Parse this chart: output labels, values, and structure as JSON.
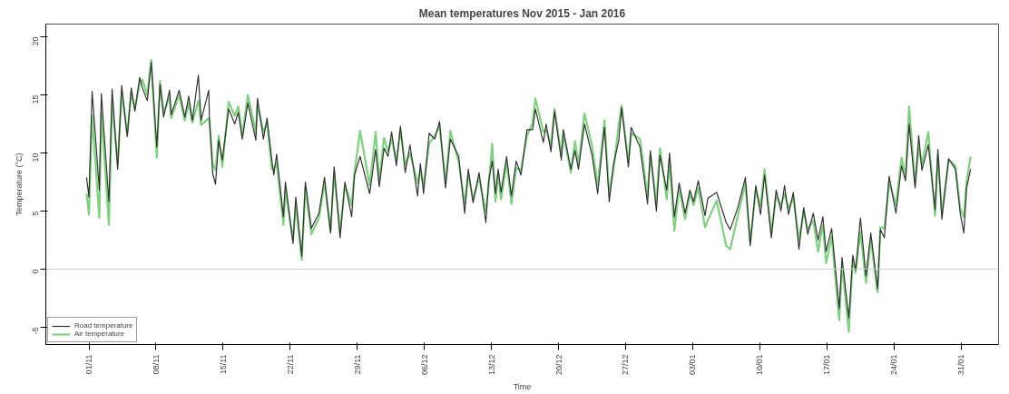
{
  "chart_data": {
    "type": "line",
    "title": "Mean temperatures Nov 2015 - Jan 2016",
    "xlabel": "Time",
    "ylabel": "Temperature (°C)",
    "x": [
      "2015-10-31T18:00",
      "2015-11-01T00:00",
      "2015-11-01T08:00",
      "2015-11-02T02:00",
      "2015-11-02T07:00",
      "2015-11-03T02:00",
      "2015-11-03T10:00",
      "2015-11-04T00:00",
      "2015-11-04T10:00",
      "2015-11-05T00:00",
      "2015-11-05T10:00",
      "2015-11-05T19:00",
      "2015-11-06T07:00",
      "2015-11-06T14:00",
      "2015-11-07T02:00",
      "2015-11-07T12:00",
      "2015-11-08T02:00",
      "2015-11-08T10:00",
      "2015-11-08T19:00",
      "2015-11-09T10:00",
      "2015-11-09T14:00",
      "2015-11-10T10:00",
      "2015-11-11T00:00",
      "2015-11-11T10:00",
      "2015-11-11T19:00",
      "2015-11-12T10:00",
      "2015-11-12T17:00",
      "2015-11-13T12:00",
      "2015-11-13T14:00",
      "2015-11-13T22:00",
      "2015-11-14T05:00",
      "2015-11-14T13:00",
      "2015-11-14T22:00",
      "2015-11-15T14:00",
      "2015-11-16T05:00",
      "2015-11-16T14:00",
      "2015-11-17T00:00",
      "2015-11-17T14:00",
      "2015-11-18T10:00",
      "2015-11-18T14:00",
      "2015-11-19T05:00",
      "2015-11-19T14:00",
      "2015-11-20T02:00",
      "2015-11-20T07:00",
      "2015-11-20T14:00",
      "2015-11-21T07:00",
      "2015-11-21T12:00",
      "2015-11-22T07:00",
      "2015-11-22T14:00",
      "2015-11-23T05:00",
      "2015-11-23T14:00",
      "2015-11-24T05:00",
      "2015-11-25T00:00",
      "2015-11-25T14:00",
      "2015-11-26T05:00",
      "2015-11-26T14:00",
      "2015-11-27T05:00",
      "2015-11-27T17:00",
      "2015-11-28T10:00",
      "2015-11-28T17:00",
      "2015-11-29T07:00",
      "2015-11-30T07:00",
      "2015-11-30T22:00",
      "2015-12-01T07:00",
      "2015-12-01T19:00",
      "2015-12-02T05:00",
      "2015-12-02T14:00",
      "2015-12-03T02:00",
      "2015-12-03T12:00",
      "2015-12-04T00:00",
      "2015-12-04T12:00",
      "2015-12-05T07:00",
      "2015-12-05T14:00",
      "2015-12-05T22:00",
      "2015-12-06T12:00",
      "2015-12-07T02:00",
      "2015-12-07T14:00",
      "2015-12-08T05:00",
      "2015-12-08T17:00",
      "2015-12-09T14:00",
      "2015-12-10T05:00",
      "2015-12-10T14:00",
      "2015-12-11T02:00",
      "2015-12-11T17:00",
      "2015-12-12T10:00",
      "2015-12-12T17:00",
      "2015-12-13T02:00",
      "2015-12-13T10:00",
      "2015-12-13T17:00",
      "2015-12-14T00:00",
      "2015-12-14T14:00",
      "2015-12-15T02:00",
      "2015-12-15T14:00",
      "2015-12-16T02:00",
      "2015-12-16T17:00",
      "2015-12-17T07:00",
      "2015-12-17T14:00",
      "2015-12-18T10:00",
      "2015-12-18T17:00",
      "2015-12-19T05:00",
      "2015-12-19T14:00",
      "2015-12-20T07:00",
      "2015-12-20T12:00",
      "2015-12-21T07:00",
      "2015-12-21T17:00",
      "2015-12-22T02:00",
      "2015-12-22T17:00",
      "2015-12-23T12:00",
      "2015-12-24T02:00",
      "2015-12-24T19:00",
      "2015-12-25T07:00",
      "2015-12-25T17:00",
      "2015-12-26T07:00",
      "2015-12-26T14:00",
      "2015-12-27T07:00",
      "2015-12-27T14:00",
      "2015-12-28T12:00",
      "2015-12-29T07:00",
      "2015-12-29T14:00",
      "2015-12-30T05:00",
      "2015-12-30T14:00",
      "2015-12-31T07:00",
      "2015-12-31T14:00",
      "2016-01-01T02:00",
      "2016-01-01T14:00",
      "2016-01-02T05:00",
      "2016-01-02T17:00",
      "2016-01-03T02:00",
      "2016-01-03T14:00",
      "2016-01-04T07:00",
      "2016-01-04T14:00",
      "2016-01-05T12:00",
      "2016-01-06T12:00",
      "2016-01-06T22:00",
      "2016-01-07T17:00",
      "2016-01-08T12:00",
      "2016-01-09T00:00",
      "2016-01-09T14:00",
      "2016-01-10T02:00",
      "2016-01-10T12:00",
      "2016-01-11T05:00",
      "2016-01-11T17:00",
      "2016-01-12T05:00",
      "2016-01-12T14:00",
      "2016-01-13T00:00",
      "2016-01-13T12:00",
      "2016-01-14T02:00",
      "2016-01-14T14:00",
      "2016-01-15T00:00",
      "2016-01-15T14:00",
      "2016-01-16T02:00",
      "2016-01-16T14:00",
      "2016-01-16T22:00",
      "2016-01-17T12:00",
      "2016-01-18T07:00",
      "2016-01-18T14:00",
      "2016-01-19T07:00",
      "2016-01-19T17:00",
      "2016-01-20T00:00",
      "2016-01-20T12:00",
      "2016-01-21T02:00",
      "2016-01-21T14:00",
      "2016-01-22T07:00",
      "2016-01-22T14:00",
      "2016-01-23T00:00",
      "2016-01-23T12:00",
      "2016-01-24T05:00",
      "2016-01-24T19:00",
      "2016-01-25T05:00",
      "2016-01-25T14:00",
      "2016-01-26T05:00",
      "2016-01-26T14:00",
      "2016-01-26T22:00",
      "2016-01-27T14:00",
      "2016-01-28T07:00",
      "2016-01-28T14:00",
      "2016-01-29T00:00",
      "2016-01-29T17:00",
      "2016-01-30T10:00",
      "2016-01-30T22:00",
      "2016-01-31T07:00",
      "2016-01-31T14:00",
      "2016-02-01T00:00"
    ],
    "series": [
      {
        "name": "Road temperature",
        "color": "#333333",
        "values": [
          7.9,
          6.2,
          15.3,
          6.8,
          15.1,
          5.8,
          15.5,
          8.6,
          15.8,
          11.4,
          15.6,
          13.6,
          16.5,
          15.6,
          14.5,
          17.8,
          10.5,
          15.9,
          13.1,
          15.4,
          13.3,
          15.4,
          13.1,
          14.9,
          12.8,
          16.7,
          12.8,
          15.4,
          12.8,
          8.2,
          7.3,
          11.1,
          9.4,
          13.8,
          12.5,
          13.5,
          11.2,
          14.3,
          11.1,
          14.7,
          11.2,
          13.0,
          9.4,
          8.1,
          9.9,
          4.5,
          7.5,
          2.2,
          6.2,
          1.1,
          7.5,
          3.5,
          4.8,
          7.9,
          3.1,
          8.8,
          2.7,
          7.5,
          4.5,
          8.1,
          9.7,
          6.5,
          10.3,
          7.1,
          10.4,
          9.7,
          11.8,
          8.9,
          12.3,
          8.3,
          10.7,
          6.3,
          9.1,
          6.5,
          11.7,
          11.2,
          12.7,
          7.0,
          11.2,
          9.7,
          4.8,
          8.6,
          5.7,
          8.3,
          4.0,
          7.6,
          9.3,
          6.5,
          8.6,
          6.6,
          9.7,
          6.3,
          9.3,
          8.1,
          12.0,
          12.0,
          13.8,
          10.9,
          12.5,
          10.1,
          13.6,
          9.4,
          12.0,
          8.6,
          10.2,
          8.6,
          12.5,
          9.8,
          6.5,
          12.2,
          5.8,
          8.9,
          11.1,
          13.9,
          8.8,
          12.2,
          10.5,
          5.6,
          10.2,
          5.0,
          9.8,
          6.8,
          10.0,
          4.5,
          7.4,
          4.8,
          6.8,
          5.8,
          7.6,
          4.6,
          6.1,
          6.6,
          4.0,
          3.4,
          5.3,
          7.9,
          2.0,
          7.2,
          4.7,
          8.1,
          2.7,
          6.8,
          5.0,
          7.2,
          4.7,
          6.6,
          1.7,
          5.3,
          3.0,
          4.8,
          2.5,
          4.5,
          1.5,
          3.5,
          -3.4,
          1.0,
          -4.2,
          1.2,
          -0.1,
          4.4,
          -0.6,
          3.1,
          -1.7,
          3.4,
          2.7,
          8.0,
          4.8,
          8.9,
          7.6,
          12.5,
          7.0,
          11.5,
          8.5,
          10.7,
          5.1,
          10.3,
          4.3,
          9.5,
          8.6,
          4.8,
          3.1,
          7.0,
          8.6
        ]
      },
      {
        "name": "Air temperature",
        "color": "#7fd17f",
        "values": [
          6.5,
          4.7,
          13.2,
          4.4,
          13.5,
          3.8,
          14.3,
          9.0,
          15.2,
          11.6,
          15.2,
          13.8,
          16.0,
          16.3,
          15.0,
          18.0,
          9.6,
          16.2,
          13.5,
          14.8,
          13.0,
          15.0,
          12.8,
          14.3,
          12.6,
          14.5,
          12.4,
          13.0,
          12.6,
          9.0,
          8.5,
          11.5,
          8.8,
          14.4,
          13.2,
          14.0,
          11.5,
          15.0,
          11.8,
          14.2,
          11.8,
          12.6,
          8.6,
          8.6,
          9.2,
          3.8,
          6.8,
          2.5,
          5.5,
          0.8,
          7.0,
          3.0,
          4.4,
          7.4,
          3.3,
          8.3,
          3.2,
          7.2,
          5.5,
          8.3,
          11.9,
          7.2,
          11.8,
          7.6,
          11.3,
          10.1,
          11.2,
          9.3,
          12.0,
          9.0,
          10.0,
          7.4,
          8.5,
          7.2,
          10.8,
          11.5,
          12.3,
          7.5,
          11.9,
          9.2,
          5.6,
          8.2,
          6.0,
          7.9,
          4.9,
          7.2,
          10.8,
          5.8,
          8.2,
          6.0,
          9.2,
          5.6,
          8.7,
          8.5,
          11.5,
          12.6,
          14.7,
          11.8,
          12.0,
          10.6,
          13.8,
          9.8,
          11.6,
          8.3,
          11.0,
          9.0,
          13.4,
          10.6,
          7.2,
          12.8,
          6.5,
          8.4,
          12.5,
          14.1,
          9.2,
          11.7,
          11.2,
          6.3,
          9.8,
          5.7,
          10.4,
          6.0,
          9.4,
          3.3,
          7.0,
          4.3,
          6.5,
          5.5,
          7.0,
          3.6,
          4.2,
          5.9,
          2.0,
          1.7,
          4.6,
          7.4,
          2.3,
          6.8,
          5.4,
          8.6,
          3.1,
          6.3,
          5.5,
          6.5,
          5.2,
          6.2,
          2.5,
          5.0,
          3.4,
          4.2,
          1.5,
          3.8,
          0.5,
          2.8,
          -4.4,
          0.3,
          -5.4,
          0.8,
          -0.3,
          3.2,
          -1.2,
          2.6,
          -2.0,
          3.6,
          3.5,
          7.5,
          5.5,
          9.6,
          7.9,
          14.0,
          7.3,
          10.5,
          9.0,
          11.8,
          4.6,
          9.8,
          4.8,
          9.4,
          8.9,
          5.2,
          4.5,
          7.6,
          9.7
        ]
      }
    ],
    "xlim": [
      "2015-10-27T12:00",
      "2016-02-03T22:00"
    ],
    "xticks": [
      {
        "value": "2015-11-01",
        "label": "01/11"
      },
      {
        "value": "2015-11-08",
        "label": "08/11"
      },
      {
        "value": "2015-11-15",
        "label": "15/11"
      },
      {
        "value": "2015-11-22",
        "label": "22/11"
      },
      {
        "value": "2015-11-29",
        "label": "29/11"
      },
      {
        "value": "2015-12-06",
        "label": "06/12"
      },
      {
        "value": "2015-12-13",
        "label": "13/12"
      },
      {
        "value": "2015-12-20",
        "label": "20/12"
      },
      {
        "value": "2015-12-27",
        "label": "27/12"
      },
      {
        "value": "2016-01-03",
        "label": "03/01"
      },
      {
        "value": "2016-01-10",
        "label": "10/01"
      },
      {
        "value": "2016-01-17",
        "label": "17/01"
      },
      {
        "value": "2016-01-24",
        "label": "24/01"
      },
      {
        "value": "2016-01-31",
        "label": "31/01"
      }
    ],
    "ylim": [
      -6.5,
      21.1
    ],
    "yticks": [
      -5,
      0,
      5,
      10,
      15,
      20
    ],
    "ref_lines": [
      {
        "axis": "y",
        "value": 0,
        "color": "#cccccc"
      }
    ],
    "grid": false,
    "legend": "bottom left",
    "line_style": "solid",
    "marker": "none"
  }
}
